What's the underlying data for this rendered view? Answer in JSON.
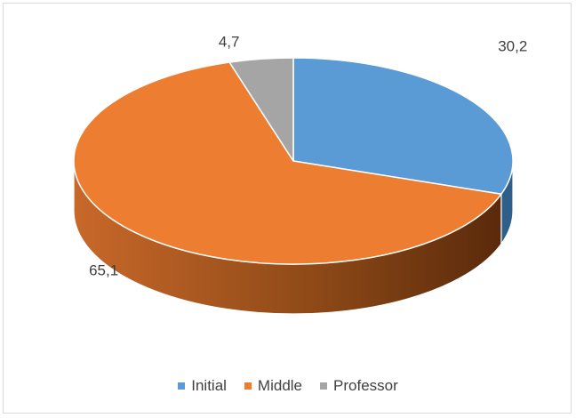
{
  "chart_data": {
    "type": "pie",
    "style": "3d",
    "categories": [
      "Initial",
      "Middle",
      "Professor"
    ],
    "values": [
      30.2,
      65.1,
      4.7
    ],
    "data_labels": [
      "30,2",
      "65,1",
      "4,7"
    ],
    "colors": [
      "#5b9bd5",
      "#ed7d31",
      "#a5a5a5"
    ],
    "side_colors": [
      "#2e5f8a",
      "#b5581c",
      "#6e6e6e"
    ],
    "legend_placement": "bottom"
  }
}
